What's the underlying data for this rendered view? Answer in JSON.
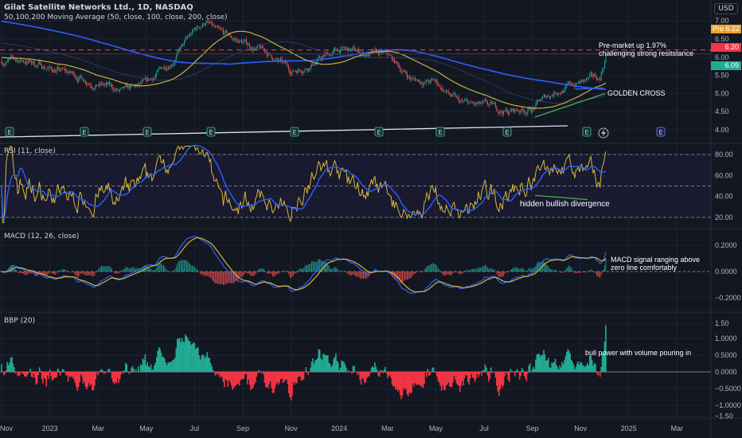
{
  "header": {
    "title": "Gilat Satellite Networks Ltd., 1D, NASDAQ",
    "indicator": "50,100,200 Moving Average (50, close, 100, close, 200, close)",
    "currency": "USD"
  },
  "price_tags": {
    "pre_label": "Pre",
    "pre_value": "6.22",
    "last_red": "6.20",
    "last_green": "6.09"
  },
  "colors": {
    "up": "#26a69a",
    "down": "#ef5350",
    "ma_fast": "#c9b03a",
    "ma_slow": "#2962ff",
    "pre": "#f0a024",
    "background": "#131722"
  },
  "annotations": {
    "premarket_1": "Pre-market up 1.97%",
    "premarket_2": "challenging strong resitstance",
    "golden_cross": "GOLDEN CROSS",
    "divergence": "hidden bullish divergence",
    "macd_1": "MACD signal ranging above",
    "macd_2": "zero line comfortably",
    "bbp": "bull power with volume pouring in"
  },
  "panes": {
    "rsi": "RSI (11, close)",
    "macd": "MACD (12, 26, close)",
    "bbp": "BBP (20)"
  },
  "chart_data": {
    "type": "candlestick",
    "note_units": "price in USD",
    "x_ticks": [
      "Nov",
      "2023",
      "Mar",
      "May",
      "Jul",
      "Sep",
      "Nov",
      "2024",
      "Mar",
      "May",
      "Jul",
      "Sep",
      "Nov",
      "2025",
      "Mar"
    ],
    "price_axis": [
      "7.00",
      "6.50",
      "6.00",
      "5.50",
      "5.00",
      "4.50",
      "4.00"
    ],
    "price_ylim": [
      3.7,
      7.3
    ],
    "rsi_axis": [
      "80.00",
      "60.00",
      "40.00",
      "20.00"
    ],
    "macd_axis": [
      "0.2000",
      "0.0000",
      "−0.2000"
    ],
    "bbp_axis": [
      "1.50",
      "1.0000",
      "0.5000",
      "0.0000",
      "−0.5000",
      "−1.0000",
      "−1.50"
    ],
    "approx_closes": [
      {
        "date": "2022-11",
        "close": 5.9
      },
      {
        "date": "2022-12",
        "close": 5.9
      },
      {
        "date": "2023-01",
        "close": 5.7
      },
      {
        "date": "2023-02",
        "close": 5.5
      },
      {
        "date": "2023-03",
        "close": 5.3
      },
      {
        "date": "2023-04",
        "close": 5.0
      },
      {
        "date": "2023-05",
        "close": 5.2
      },
      {
        "date": "2023-06",
        "close": 5.9
      },
      {
        "date": "2023-07",
        "close": 6.7
      },
      {
        "date": "2023-07-15",
        "close": 7.0
      },
      {
        "date": "2023-08",
        "close": 6.6
      },
      {
        "date": "2023-09",
        "close": 6.4
      },
      {
        "date": "2023-10",
        "close": 6.1
      },
      {
        "date": "2023-11",
        "close": 5.6
      },
      {
        "date": "2023-12",
        "close": 5.9
      },
      {
        "date": "2024-01",
        "close": 6.2
      },
      {
        "date": "2024-02",
        "close": 6.1
      },
      {
        "date": "2024-03",
        "close": 6.0
      },
      {
        "date": "2024-04",
        "close": 5.4
      },
      {
        "date": "2024-05",
        "close": 5.3
      },
      {
        "date": "2024-06",
        "close": 4.7
      },
      {
        "date": "2024-07",
        "close": 4.6
      },
      {
        "date": "2024-08",
        "close": 4.5
      },
      {
        "date": "2024-09",
        "close": 4.6
      },
      {
        "date": "2024-10",
        "close": 5.1
      },
      {
        "date": "2024-11",
        "close": 5.3
      },
      {
        "date": "2024-11-25",
        "close": 5.4
      },
      {
        "date": "2024-12-03",
        "close": 6.09
      }
    ],
    "resistance": 6.2,
    "last_close": 6.09,
    "premarket": 6.22,
    "earnings_markers": 9
  }
}
